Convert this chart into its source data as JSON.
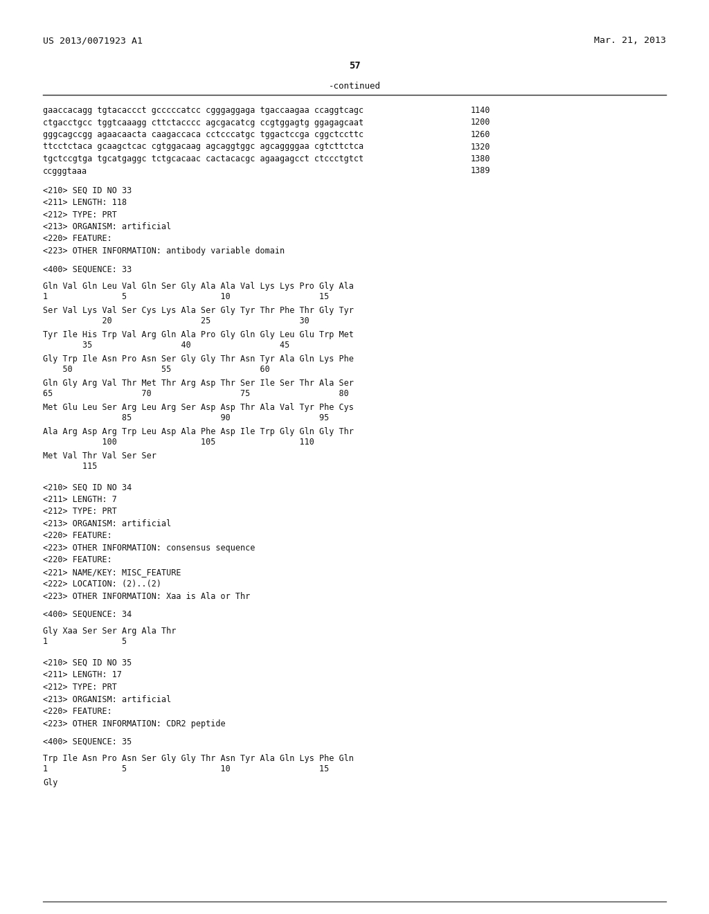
{
  "background_color": "#ffffff",
  "header_left": "US 2013/0071923 A1",
  "header_right": "Mar. 21, 2013",
  "page_number": "57",
  "continued_label": "-continued",
  "lines": [
    {
      "text": "gaaccacagg tgtacaccct gcccccatcc cgggaggaga tgaccaagaa ccaggtcagc",
      "num": "1140"
    },
    {
      "text": "ctgacctgcc tggtcaaagg cttctacccc agcgacatcg ccgtggagtg ggagagcaat",
      "num": "1200"
    },
    {
      "text": "gggcagccgg agaacaacta caagaccaca cctcccatgc tggactccga cggctccttc",
      "num": "1260"
    },
    {
      "text": "ttcctctaca gcaagctcac cgtggacaag agcaggtggc agcaggggaa cgtcttctca",
      "num": "1320"
    },
    {
      "text": "tgctccgtga tgcatgaggc tctgcacaac cactacacgc agaagagcct ctccctgtct",
      "num": "1380"
    },
    {
      "text": "ccgggtaaa",
      "num": "1389"
    }
  ],
  "meta33": [
    "<210> SEQ ID NO 33",
    "<211> LENGTH: 118",
    "<212> TYPE: PRT",
    "<213> ORGANISM: artificial",
    "<220> FEATURE:",
    "<223> OTHER INFORMATION: antibody variable domain"
  ],
  "seq33_label": "<400> SEQUENCE: 33",
  "aa33": [
    {
      "seq": "Gln Val Gln Leu Val Gln Ser Gly Ala Ala Val Lys Lys Pro Gly Ala",
      "num": "1               5                   10                  15"
    },
    {
      "seq": "Ser Val Lys Val Ser Cys Lys Ala Ser Gly Tyr Thr Phe Thr Gly Tyr",
      "num": "            20                  25                  30"
    },
    {
      "seq": "Tyr Ile His Trp Val Arg Gln Ala Pro Gly Gln Gly Leu Glu Trp Met",
      "num": "        35                  40                  45"
    },
    {
      "seq": "Gly Trp Ile Asn Pro Asn Ser Gly Gly Thr Asn Tyr Ala Gln Lys Phe",
      "num": "    50                  55                  60"
    },
    {
      "seq": "Gln Gly Arg Val Thr Met Thr Arg Asp Thr Ser Ile Ser Thr Ala Ser",
      "num": "65                  70                  75                  80"
    },
    {
      "seq": "Met Glu Leu Ser Arg Leu Arg Ser Asp Asp Thr Ala Val Tyr Phe Cys",
      "num": "                85                  90                  95"
    },
    {
      "seq": "Ala Arg Asp Arg Trp Leu Asp Ala Phe Asp Ile Trp Gly Gln Gly Thr",
      "num": "            100                 105                 110"
    },
    {
      "seq": "Met Val Thr Val Ser Ser",
      "num": "        115"
    }
  ],
  "meta34": [
    "<210> SEQ ID NO 34",
    "<211> LENGTH: 7",
    "<212> TYPE: PRT",
    "<213> ORGANISM: artificial",
    "<220> FEATURE:",
    "<223> OTHER INFORMATION: consensus sequence",
    "<220> FEATURE:",
    "<221> NAME/KEY: MISC_FEATURE",
    "<222> LOCATION: (2)..(2)",
    "<223> OTHER INFORMATION: Xaa is Ala or Thr"
  ],
  "seq34_label": "<400> SEQUENCE: 34",
  "aa34": [
    {
      "seq": "Gly Xaa Ser Ser Arg Ala Thr",
      "num": "1               5"
    }
  ],
  "meta35": [
    "<210> SEQ ID NO 35",
    "<211> LENGTH: 17",
    "<212> TYPE: PRT",
    "<213> ORGANISM: artificial",
    "<220> FEATURE:",
    "<223> OTHER INFORMATION: CDR2 peptide"
  ],
  "seq35_label": "<400> SEQUENCE: 35",
  "aa35": [
    {
      "seq": "Trp Ile Asn Pro Asn Ser Gly Gly Thr Asn Tyr Ala Gln Lys Phe Gln",
      "num": "1               5                   10                  15"
    },
    {
      "seq": "Gly",
      "num": ""
    }
  ]
}
